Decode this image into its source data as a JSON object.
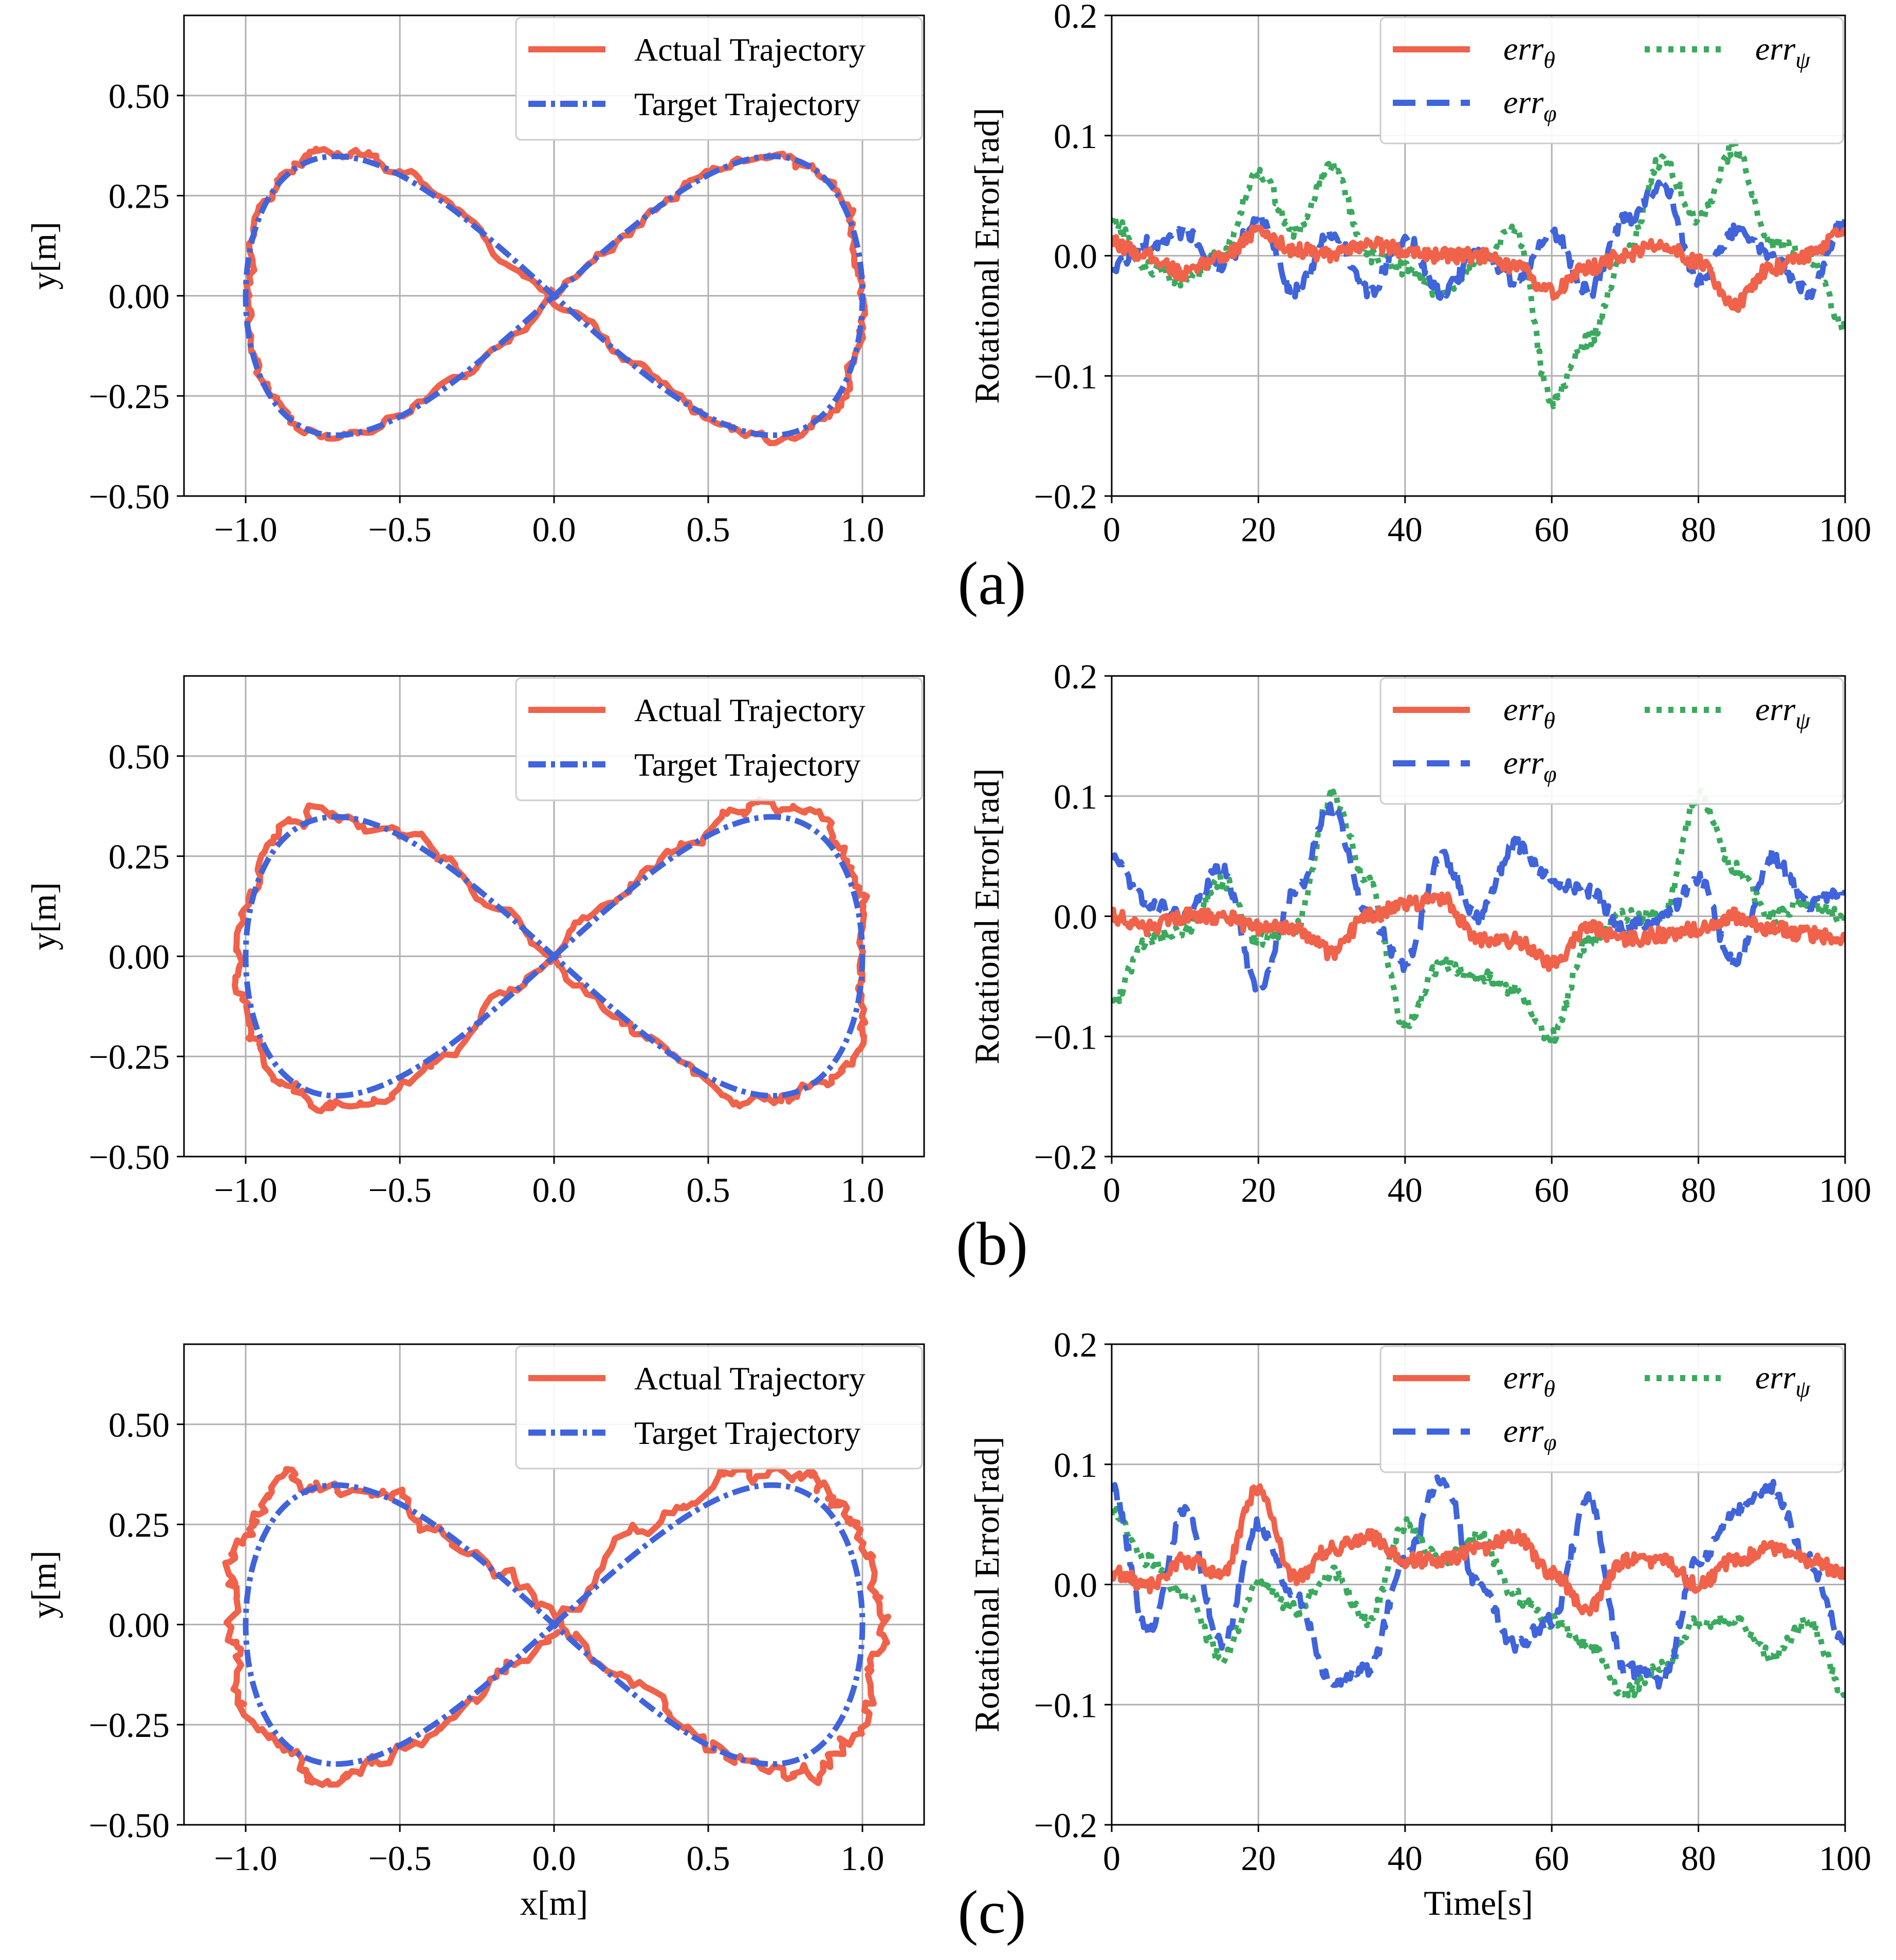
{
  "colors": {
    "actual": "#f0624a",
    "target": "#3f64db",
    "theta": "#f0624a",
    "phi": "#3f64db",
    "psi": "#3aaa5e",
    "grid": "#b0b0b0",
    "legend_border": "#cccccc"
  },
  "panel_labels": [
    "(a)",
    "(b)",
    "(c)"
  ],
  "chart_data": [
    {
      "type": "line",
      "panel": "(a)",
      "title": "",
      "xlabel": "",
      "ylabel": "y[m]",
      "xlim": [
        -1.2,
        1.2
      ],
      "ylim": [
        -0.5,
        0.7
      ],
      "xticks": [
        -1.0,
        -0.5,
        0.0,
        0.5,
        1.0
      ],
      "xtick_labels": [
        "−1.0",
        "−0.5",
        "0.0",
        "0.5",
        "1.0"
      ],
      "yticks": [
        -0.5,
        -0.25,
        0.0,
        0.25,
        0.5
      ],
      "ytick_labels": [
        "−0.50",
        "−0.25",
        "0.00",
        "0.25",
        "0.50"
      ],
      "legend": [
        "Actual Trajectory",
        "Target Trajectory"
      ],
      "legend_position": "top-right",
      "series": [
        {
          "name": "Actual Trajectory",
          "shape": "lemniscate",
          "a": 1.0,
          "b": 0.355,
          "noise": 0.012,
          "seed": 11
        },
        {
          "name": "Target Trajectory",
          "shape": "lemniscate",
          "a": 1.0,
          "b": 0.35,
          "noise": 0
        }
      ]
    },
    {
      "type": "line",
      "panel": "(a)",
      "title": "",
      "xlabel": "",
      "ylabel": "Rotational Error[rad]",
      "xlim": [
        0,
        100
      ],
      "ylim": [
        -0.2,
        0.2
      ],
      "xticks": [
        0,
        20,
        40,
        60,
        80,
        100
      ],
      "xtick_labels": [
        "0",
        "20",
        "40",
        "60",
        "80",
        "100"
      ],
      "yticks": [
        -0.2,
        -0.1,
        0.0,
        0.1,
        0.2
      ],
      "ytick_labels": [
        "−0.2",
        "−0.1",
        "0.0",
        "0.1",
        "0.2"
      ],
      "legend": [
        {
          "base": "err",
          "sub": "θ"
        },
        {
          "base": "err",
          "sub": "φ"
        },
        {
          "base": "err",
          "sub": "ψ"
        }
      ],
      "legend_position": "top-right",
      "series": [
        {
          "name": "err_theta",
          "x": [
            0,
            5,
            10,
            15,
            20,
            25,
            30,
            35,
            40,
            45,
            50,
            55,
            60,
            65,
            70,
            75,
            80,
            85,
            90,
            95,
            100
          ],
          "values": [
            0.01,
            0.0,
            -0.015,
            0.0,
            0.02,
            0.005,
            0.0,
            0.01,
            0.005,
            0.0,
            0.0,
            -0.01,
            -0.03,
            -0.01,
            0.0,
            0.01,
            -0.005,
            -0.04,
            -0.01,
            0.0,
            0.02
          ]
        },
        {
          "name": "err_phi",
          "x": [
            0,
            5,
            10,
            15,
            20,
            25,
            30,
            35,
            40,
            45,
            50,
            55,
            60,
            65,
            70,
            75,
            80,
            85,
            90,
            95,
            100
          ],
          "values": [
            -0.01,
            0.01,
            0.02,
            -0.01,
            0.03,
            -0.03,
            0.02,
            -0.03,
            0.015,
            -0.03,
            0.0,
            -0.02,
            0.02,
            -0.03,
            0.03,
            0.06,
            -0.02,
            0.02,
            0.0,
            -0.03,
            0.03
          ]
        },
        {
          "name": "err_psi",
          "x": [
            0,
            5,
            10,
            15,
            20,
            25,
            30,
            35,
            40,
            45,
            50,
            55,
            60,
            65,
            70,
            75,
            80,
            85,
            90,
            95,
            100
          ],
          "values": [
            0.03,
            -0.01,
            -0.02,
            0.0,
            0.07,
            0.02,
            0.075,
            0.0,
            -0.01,
            -0.03,
            -0.005,
            0.02,
            -0.12,
            -0.07,
            0.0,
            0.08,
            0.03,
            0.09,
            0.01,
            0.0,
            -0.06
          ]
        }
      ]
    },
    {
      "type": "line",
      "panel": "(b)",
      "title": "",
      "xlabel": "",
      "ylabel": "y[m]",
      "xlim": [
        -1.2,
        1.2
      ],
      "ylim": [
        -0.5,
        0.7
      ],
      "xticks": [
        -1.0,
        -0.5,
        0.0,
        0.5,
        1.0
      ],
      "xtick_labels": [
        "−1.0",
        "−0.5",
        "0.0",
        "0.5",
        "1.0"
      ],
      "yticks": [
        -0.5,
        -0.25,
        0.0,
        0.25,
        0.5
      ],
      "ytick_labels": [
        "−0.50",
        "−0.25",
        "0.00",
        "0.25",
        "0.50"
      ],
      "legend": [
        "Actual Trajectory",
        "Target Trajectory"
      ],
      "legend_position": "top-right",
      "series": [
        {
          "name": "Actual Trajectory",
          "shape": "lemniscate",
          "a": 1.02,
          "b": 0.365,
          "noise": 0.016,
          "seed": 23
        },
        {
          "name": "Target Trajectory",
          "shape": "lemniscate",
          "a": 1.0,
          "b": 0.35,
          "noise": 0
        }
      ]
    },
    {
      "type": "line",
      "panel": "(b)",
      "title": "",
      "xlabel": "",
      "ylabel": "Rotational Error[rad]",
      "xlim": [
        0,
        100
      ],
      "ylim": [
        -0.2,
        0.2
      ],
      "xticks": [
        0,
        20,
        40,
        60,
        80,
        100
      ],
      "xtick_labels": [
        "0",
        "20",
        "40",
        "60",
        "80",
        "100"
      ],
      "yticks": [
        -0.2,
        -0.1,
        0.0,
        0.1,
        0.2
      ],
      "ytick_labels": [
        "−0.2",
        "−0.1",
        "0.0",
        "0.1",
        "0.2"
      ],
      "legend": [
        {
          "base": "err",
          "sub": "θ"
        },
        {
          "base": "err",
          "sub": "φ"
        },
        {
          "base": "err",
          "sub": "ψ"
        }
      ],
      "legend_position": "top-right",
      "series": [
        {
          "name": "err_theta",
          "x": [
            0,
            5,
            10,
            15,
            20,
            25,
            30,
            35,
            40,
            45,
            50,
            55,
            60,
            65,
            70,
            75,
            80,
            85,
            90,
            95,
            100
          ],
          "values": [
            0.0,
            -0.01,
            0.0,
            0.0,
            -0.01,
            -0.01,
            -0.03,
            0.0,
            0.01,
            0.015,
            -0.02,
            -0.02,
            -0.04,
            -0.01,
            -0.02,
            -0.015,
            -0.01,
            0.0,
            -0.01,
            -0.015,
            -0.02
          ]
        },
        {
          "name": "err_phi",
          "x": [
            0,
            5,
            10,
            15,
            20,
            25,
            30,
            35,
            40,
            45,
            50,
            55,
            60,
            65,
            70,
            75,
            80,
            85,
            90,
            95,
            100
          ],
          "values": [
            0.05,
            0.01,
            0.0,
            0.04,
            -0.06,
            0.02,
            0.09,
            0.0,
            -0.04,
            0.05,
            0.0,
            0.06,
            0.03,
            0.02,
            -0.01,
            0.0,
            0.03,
            -0.04,
            0.05,
            0.01,
            0.02
          ]
        },
        {
          "name": "err_psi",
          "x": [
            0,
            5,
            10,
            15,
            20,
            25,
            30,
            35,
            40,
            45,
            50,
            55,
            60,
            65,
            70,
            75,
            80,
            85,
            90,
            95,
            100
          ],
          "values": [
            -0.07,
            -0.02,
            -0.01,
            0.03,
            -0.02,
            -0.01,
            0.1,
            0.03,
            -0.09,
            -0.04,
            -0.05,
            -0.06,
            -0.1,
            -0.02,
            0.0,
            0.0,
            0.1,
            0.04,
            0.0,
            0.01,
            0.0
          ]
        }
      ]
    },
    {
      "type": "line",
      "panel": "(c)",
      "title": "",
      "xlabel": "x[m]",
      "ylabel": "y[m]",
      "xlim": [
        -1.2,
        1.2
      ],
      "ylim": [
        -0.5,
        0.7
      ],
      "xticks": [
        -1.0,
        -0.5,
        0.0,
        0.5,
        1.0
      ],
      "xtick_labels": [
        "−1.0",
        "−0.5",
        "0.0",
        "0.5",
        "1.0"
      ],
      "yticks": [
        -0.5,
        -0.25,
        0.0,
        0.25,
        0.5
      ],
      "ytick_labels": [
        "−0.50",
        "−0.25",
        "0.00",
        "0.25",
        "0.50"
      ],
      "legend": [
        "Actual Trajectory",
        "Target Trajectory"
      ],
      "legend_position": "top-right",
      "series": [
        {
          "name": "Actual Trajectory",
          "shape": "lemniscate",
          "a": 1.05,
          "b": 0.37,
          "noise": 0.022,
          "seed": 37
        },
        {
          "name": "Target Trajectory",
          "shape": "lemniscate",
          "a": 1.0,
          "b": 0.35,
          "noise": 0
        }
      ]
    },
    {
      "type": "line",
      "panel": "(c)",
      "title": "",
      "xlabel": "Time[s]",
      "ylabel": "Rotational Error[rad]",
      "xlim": [
        0,
        100
      ],
      "ylim": [
        -0.2,
        0.2
      ],
      "xticks": [
        0,
        20,
        40,
        60,
        80,
        100
      ],
      "xtick_labels": [
        "0",
        "20",
        "40",
        "60",
        "80",
        "100"
      ],
      "yticks": [
        -0.2,
        -0.1,
        0.0,
        0.1,
        0.2
      ],
      "ytick_labels": [
        "−0.2",
        "−0.1",
        "0.0",
        "0.1",
        "0.2"
      ],
      "legend": [
        {
          "base": "err",
          "sub": "θ"
        },
        {
          "base": "err",
          "sub": "φ"
        },
        {
          "base": "err",
          "sub": "ψ"
        }
      ],
      "legend_position": "top-right",
      "series": [
        {
          "name": "err_theta",
          "x": [
            0,
            5,
            10,
            15,
            20,
            25,
            30,
            35,
            40,
            45,
            50,
            55,
            60,
            65,
            70,
            75,
            80,
            85,
            90,
            95,
            100
          ],
          "values": [
            0.01,
            0.0,
            0.02,
            0.01,
            0.08,
            0.005,
            0.03,
            0.04,
            0.02,
            0.02,
            0.03,
            0.04,
            0.01,
            -0.02,
            0.02,
            0.02,
            0.0,
            0.02,
            0.03,
            0.02,
            0.01
          ]
        },
        {
          "name": "err_phi",
          "x": [
            0,
            5,
            10,
            15,
            20,
            25,
            30,
            35,
            40,
            45,
            50,
            55,
            60,
            65,
            70,
            75,
            80,
            85,
            90,
            95,
            100
          ],
          "values": [
            0.08,
            -0.04,
            0.06,
            -0.05,
            0.05,
            -0.01,
            -0.08,
            -0.07,
            0.02,
            0.09,
            0.0,
            -0.05,
            -0.03,
            0.07,
            -0.07,
            -0.08,
            0.02,
            0.06,
            0.08,
            0.02,
            -0.05
          ]
        },
        {
          "name": "err_psi",
          "x": [
            0,
            5,
            10,
            15,
            20,
            25,
            30,
            35,
            40,
            45,
            50,
            55,
            60,
            65,
            70,
            75,
            80,
            85,
            90,
            95,
            100
          ],
          "values": [
            0.06,
            0.02,
            -0.01,
            -0.06,
            0.0,
            -0.02,
            0.01,
            -0.03,
            0.05,
            0.02,
            0.04,
            -0.01,
            -0.03,
            -0.05,
            -0.09,
            -0.07,
            -0.03,
            -0.03,
            -0.06,
            -0.03,
            -0.09
          ]
        }
      ]
    }
  ]
}
